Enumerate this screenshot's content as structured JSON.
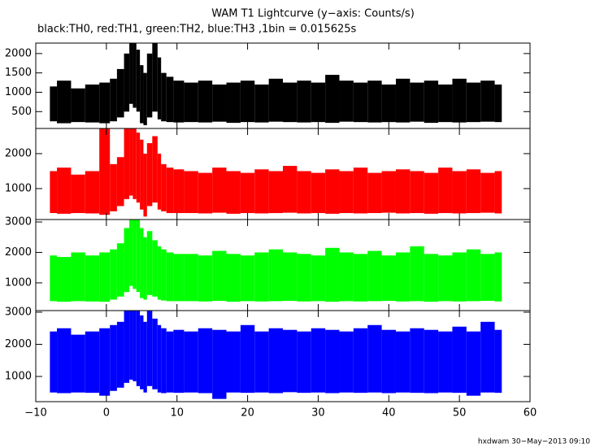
{
  "chart_data": {
    "type": "range",
    "title": "WAM T1 Lightcurve (y−axis: Counts/s)",
    "subtitle": "black:TH0, red:TH1, green:TH2, blue:TH3 ,1bin = 0.015625s",
    "x": [
      -8,
      -6,
      -4,
      -2,
      0,
      1,
      2,
      3,
      3.5,
      4,
      4.5,
      5,
      5.5,
      6,
      7,
      7.5,
      8,
      9,
      10,
      12,
      14,
      16,
      18,
      20,
      22,
      24,
      26,
      28,
      30,
      32,
      34,
      36,
      38,
      40,
      42,
      44,
      46,
      48,
      50,
      52,
      54,
      56
    ],
    "xlim": [
      -10,
      60
    ],
    "xticks": [
      {
        "value": -10,
        "label": "−10"
      },
      0,
      10,
      20,
      30,
      40,
      50,
      60
    ],
    "panels": [
      {
        "color": "#000000",
        "ylim": [
          65,
          2270
        ],
        "yticks": [
          500,
          1000,
          1500,
          2000
        ],
        "low": [
          250,
          200,
          230,
          220,
          200,
          250,
          350,
          500,
          700,
          600,
          500,
          200,
          150,
          350,
          500,
          300,
          250,
          230,
          220,
          230,
          220,
          240,
          210,
          230,
          220,
          240,
          230,
          220,
          230,
          210,
          240,
          230,
          220,
          230,
          220,
          240,
          210,
          230,
          220,
          230,
          240,
          230
        ],
        "high": [
          1150,
          1300,
          1100,
          1200,
          1250,
          1350,
          1600,
          2000,
          2270,
          2270,
          2100,
          1700,
          1500,
          2000,
          2270,
          1900,
          1500,
          1400,
          1300,
          1250,
          1300,
          1200,
          1250,
          1300,
          1200,
          1350,
          1250,
          1300,
          1250,
          1450,
          1300,
          1250,
          1300,
          1200,
          1350,
          1250,
          1300,
          1200,
          1350,
          1250,
          1300,
          1200
        ]
      },
      {
        "color": "#ff0000",
        "ylim": [
          115,
          2720
        ],
        "yticks": [
          1000,
          2000
        ],
        "low": [
          300,
          280,
          300,
          290,
          250,
          350,
          500,
          700,
          800,
          700,
          600,
          400,
          200,
          500,
          600,
          400,
          350,
          300,
          300,
          300,
          290,
          310,
          280,
          300,
          290,
          300,
          310,
          290,
          300,
          280,
          300,
          290,
          300,
          310,
          290,
          300,
          280,
          300,
          290,
          300,
          310,
          290
        ],
        "high": [
          1500,
          1600,
          1400,
          1500,
          2720,
          1700,
          1900,
          2720,
          2720,
          2720,
          2600,
          2400,
          2000,
          2300,
          2500,
          2000,
          1700,
          1600,
          1550,
          1500,
          1450,
          1600,
          1500,
          1450,
          1550,
          1500,
          1650,
          1500,
          1450,
          1550,
          1500,
          1600,
          1450,
          1500,
          1550,
          1500,
          1450,
          1600,
          1500,
          1550,
          1450,
          1500
        ]
      },
      {
        "color": "#00ff00",
        "ylim": [
          90,
          3080
        ],
        "yticks": [
          1000,
          2000,
          3000
        ],
        "low": [
          400,
          380,
          400,
          390,
          380,
          450,
          550,
          700,
          900,
          800,
          700,
          500,
          450,
          600,
          550,
          450,
          420,
          400,
          400,
          400,
          390,
          410,
          380,
          400,
          390,
          400,
          410,
          390,
          400,
          380,
          400,
          390,
          400,
          410,
          390,
          400,
          380,
          400,
          390,
          400,
          410,
          390
        ],
        "high": [
          1900,
          1850,
          2000,
          1900,
          2000,
          2100,
          2300,
          2800,
          3080,
          3080,
          3080,
          2800,
          2500,
          2700,
          2400,
          2200,
          2100,
          2000,
          1950,
          1950,
          1900,
          2050,
          1950,
          1900,
          2000,
          2100,
          2000,
          1950,
          1900,
          2150,
          2000,
          1950,
          2050,
          1900,
          2000,
          2200,
          1950,
          1900,
          2000,
          2100,
          1950,
          2000
        ]
      },
      {
        "color": "#0000ff",
        "ylim": [
          215,
          3050
        ],
        "yticks": [
          1000,
          2000,
          3000
        ],
        "low": [
          500,
          480,
          500,
          490,
          400,
          550,
          650,
          800,
          900,
          850,
          700,
          600,
          500,
          700,
          600,
          500,
          480,
          500,
          490,
          500,
          480,
          300,
          500,
          490,
          500,
          480,
          510,
          490,
          500,
          480,
          500,
          490,
          500,
          480,
          500,
          490,
          480,
          500,
          490,
          400,
          500,
          490
        ],
        "high": [
          2400,
          2500,
          2300,
          2400,
          2500,
          2600,
          2700,
          3050,
          3050,
          3050,
          3050,
          2900,
          2700,
          3050,
          2800,
          2600,
          2500,
          2400,
          2450,
          2400,
          2500,
          2450,
          2400,
          2600,
          2400,
          2500,
          2450,
          2400,
          2500,
          2450,
          2400,
          2500,
          2600,
          2450,
          2400,
          2500,
          2450,
          2400,
          2550,
          2400,
          2700,
          2450
        ]
      }
    ]
  },
  "footer": "hxdwam 30−May−2013 09:10"
}
